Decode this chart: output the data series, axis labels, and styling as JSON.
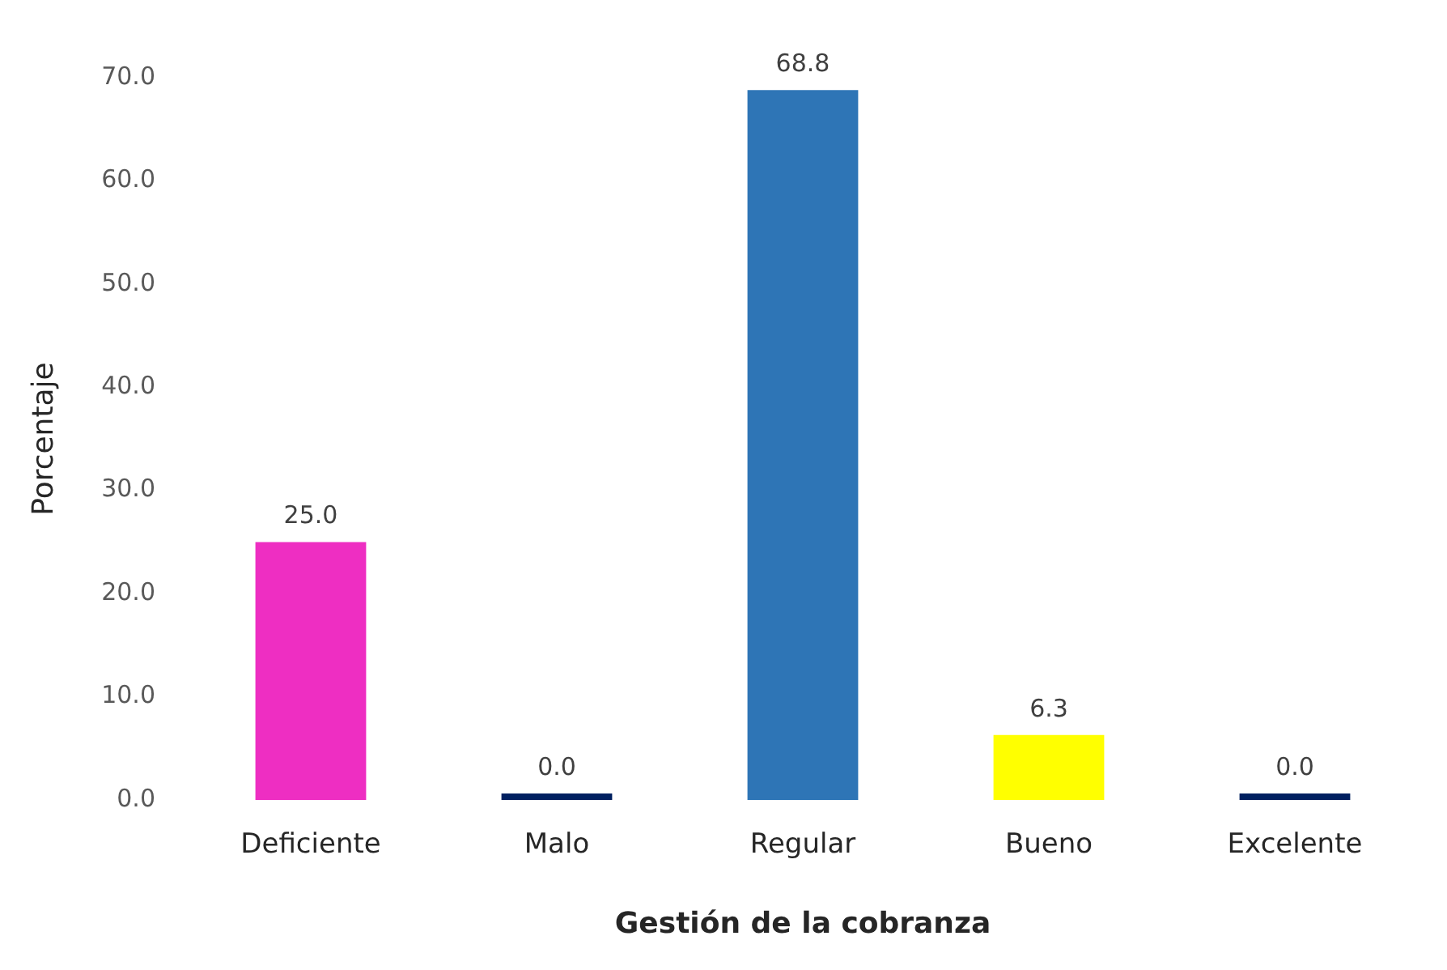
{
  "chart_data": {
    "type": "bar",
    "xlabel": "Gestión de la cobranza",
    "ylabel": "Porcentaje",
    "categories": [
      "Deficiente",
      "Malo",
      "Regular",
      "Bueno",
      "Excelente"
    ],
    "values": [
      25.0,
      0.0,
      68.8,
      6.3,
      0.0
    ],
    "colors": [
      "#ee2ec2",
      "#002060",
      "#2e75b6",
      "#ffff00",
      "#002060"
    ],
    "value_labels": [
      "25.0",
      "0.0",
      "68.8",
      "6.3",
      "0.0"
    ],
    "ylim": [
      0,
      70
    ],
    "yticks": [
      {
        "value": 0,
        "label": "0.0"
      },
      {
        "value": 10,
        "label": "10.0"
      },
      {
        "value": 20,
        "label": "20.0"
      },
      {
        "value": 30,
        "label": "30.0"
      },
      {
        "value": 40,
        "label": "40.0"
      },
      {
        "value": 50,
        "label": "50.0"
      },
      {
        "value": 60,
        "label": "60.0"
      },
      {
        "value": 70,
        "label": "70.0"
      }
    ],
    "grid": false,
    "legend": false
  }
}
